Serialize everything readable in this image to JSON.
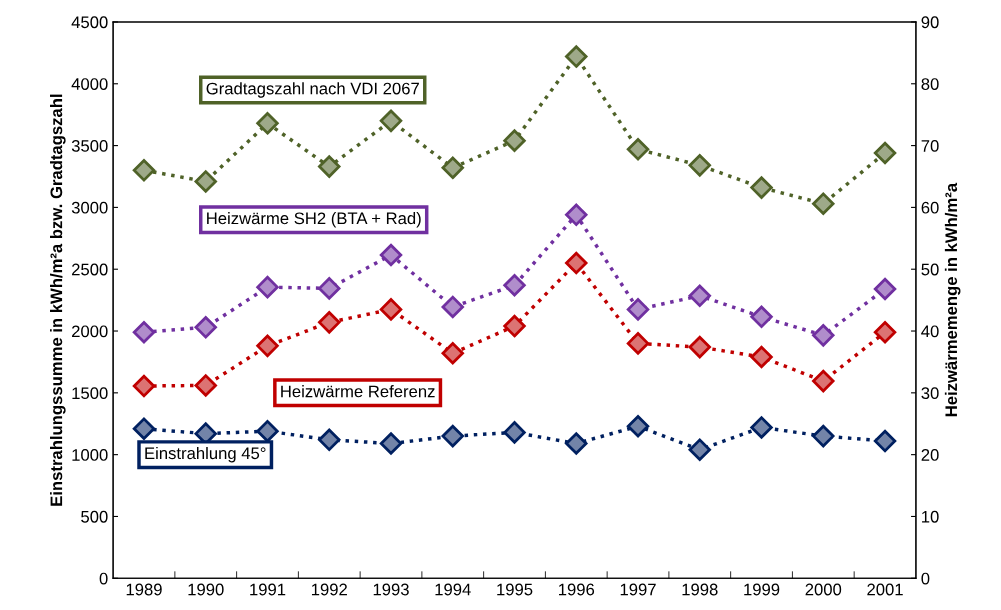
{
  "chart_data": {
    "type": "line",
    "ylabel": "Einstrahlungssumme in kWh/m²a bzw. Gradtagszahl",
    "y2label": "Heizwärmemenge in kWh/m²a",
    "categories": [
      "1989",
      "1990",
      "1991",
      "1992",
      "1993",
      "1994",
      "1995",
      "1996",
      "1997",
      "1998",
      "1999",
      "2000",
      "2001"
    ],
    "series": [
      {
        "name": "Gradtagszahl nach VDI 2067",
        "color": "#4f6228",
        "values": [
          3300,
          3210,
          3680,
          3330,
          3700,
          3320,
          3540,
          4220,
          3470,
          3340,
          3160,
          3030,
          3440
        ]
      },
      {
        "name": "Heizwärme SH2 (BTA + Rad)",
        "color": "#7030a0",
        "axis": "y2",
        "values": [
          39.8,
          40.6,
          47.1,
          46.9,
          52.3,
          43.9,
          47.4,
          58.8,
          43.5,
          45.7,
          42.3,
          39.3,
          46.8
        ]
      },
      {
        "name": "Heizwärme Referenz",
        "color": "#c00000",
        "axis": "y2",
        "values": [
          31.1,
          31.2,
          37.6,
          41.4,
          43.5,
          36.4,
          40.8,
          51.0,
          38.0,
          37.4,
          35.8,
          31.9,
          39.8
        ]
      },
      {
        "name": "Einstrahlung 45°",
        "color": "#002060",
        "values": [
          1210,
          1170,
          1190,
          1120,
          1090,
          1150,
          1180,
          1090,
          1230,
          1040,
          1220,
          1150,
          1110
        ]
      }
    ],
    "ylim": [
      0,
      4500
    ],
    "yticks": [
      0,
      500,
      1000,
      1500,
      2000,
      2500,
      3000,
      3500,
      4000,
      4500
    ],
    "y2lim": [
      0,
      90
    ],
    "y2ticks": [
      0,
      10,
      20,
      30,
      40,
      50,
      60,
      70,
      80,
      90
    ],
    "marker": "diamond",
    "line_style": "dotted",
    "grid": false,
    "legend": false
  }
}
